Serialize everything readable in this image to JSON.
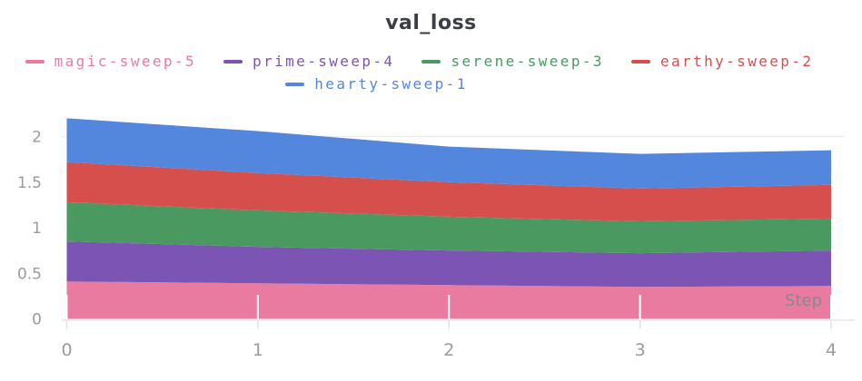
{
  "page": {
    "background": "#ffffff"
  },
  "chart_data": {
    "type": "area",
    "stacked": true,
    "title": "val_loss",
    "xlabel": "Step",
    "ylabel": "",
    "x": [
      0,
      1,
      2,
      3,
      4
    ],
    "xlim": [
      0,
      4
    ],
    "ylim": [
      0,
      2.25
    ],
    "xticks": [
      "0",
      "1",
      "2",
      "3",
      "4"
    ],
    "yticks": [
      "0",
      "0.5",
      "1",
      "1.5",
      "2"
    ],
    "legend_position": "top",
    "grid": {
      "visible_y_gridline_value": 2
    },
    "series": [
      {
        "name": "magic-sweep-5",
        "color": "#E87B9F",
        "values": [
          0.41,
          0.39,
          0.37,
          0.35,
          0.36
        ]
      },
      {
        "name": "prime-sweep-4",
        "color": "#7C55B4",
        "values": [
          0.44,
          0.4,
          0.38,
          0.37,
          0.39
        ]
      },
      {
        "name": "serene-sweep-3",
        "color": "#4A9960",
        "values": [
          0.43,
          0.4,
          0.37,
          0.35,
          0.35
        ]
      },
      {
        "name": "earthy-sweep-2",
        "color": "#D5504D",
        "values": [
          0.44,
          0.41,
          0.38,
          0.36,
          0.37
        ]
      },
      {
        "name": "hearty-sweep-1",
        "color": "#5387DD",
        "values": [
          0.48,
          0.46,
          0.39,
          0.38,
          0.38
        ]
      }
    ],
    "stack_order": "bottom-to-top matches series array order"
  },
  "colors": {
    "title": "#3b3e44",
    "tick_label": "#9b9b9b",
    "axis_line": "#e5e5e5",
    "tick_mark": "#e0e0e0",
    "gridline": "#ededed",
    "plot_tick_overlay": "#ffffff",
    "step_label": "#8b8692"
  }
}
